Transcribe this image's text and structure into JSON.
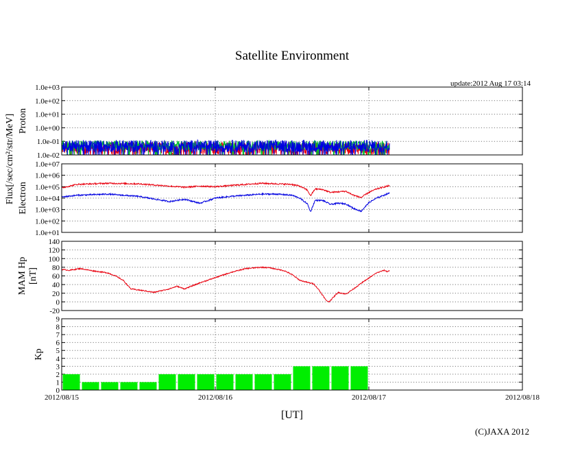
{
  "chart_data": {
    "type": "multi-panel time series",
    "title": "Satellite Environment",
    "update_text": "update:2012 Aug 17 03:14",
    "xlabel": "[UT]",
    "copyright": "(C)JAXA 2012",
    "x_ticks": [
      "2012/08/15",
      "2012/08/16",
      "2012/08/17",
      "2012/08/18"
    ],
    "x_range_days": [
      0,
      3
    ],
    "data_end_day": 2.135,
    "flux_ylabel": "Flux[/sec/cm²/str/MeV]",
    "panels": [
      {
        "name": "Proton",
        "type": "line",
        "ylabel": "Proton",
        "yscale": "log",
        "ylim_exp": [
          -2,
          3
        ],
        "y_ticks": [
          "1.0e-02",
          "1.0e-01",
          "1.0e+00",
          "1.0e+01",
          "1.0e+02",
          "1.0e+03"
        ],
        "series": [
          {
            "name": "proton-red",
            "color": "#e8000e",
            "typical_log": -1.5,
            "noise": 0.45
          },
          {
            "name": "proton-green",
            "color": "#00c030",
            "typical_log": -1.3,
            "noise": 0.35
          },
          {
            "name": "proton-blue",
            "color": "#0000e0",
            "typical_log": -1.35,
            "noise": 0.45
          }
        ]
      },
      {
        "name": "Electron",
        "type": "line",
        "ylabel": "Electron",
        "yscale": "log",
        "ylim_exp": [
          1,
          7
        ],
        "y_ticks": [
          "1.0e+01",
          "1.0e+02",
          "1.0e+03",
          "1.0e+04",
          "1.0e+05",
          "1.0e+06",
          "1.0e+07"
        ],
        "series": [
          {
            "name": "electron-red",
            "color": "#e8000e",
            "points_log": [
              [
                0,
                4.9
              ],
              [
                0.1,
                5.2
              ],
              [
                0.3,
                5.3
              ],
              [
                0.5,
                5.25
              ],
              [
                0.7,
                5.05
              ],
              [
                0.8,
                4.95
              ],
              [
                0.9,
                5.05
              ],
              [
                1.0,
                5.0
              ],
              [
                1.1,
                5.1
              ],
              [
                1.3,
                5.3
              ],
              [
                1.4,
                5.25
              ],
              [
                1.5,
                5.2
              ],
              [
                1.55,
                5.05
              ],
              [
                1.6,
                4.7
              ],
              [
                1.62,
                4.2
              ],
              [
                1.65,
                4.8
              ],
              [
                1.7,
                4.75
              ],
              [
                1.75,
                4.5
              ],
              [
                1.8,
                4.55
              ],
              [
                1.85,
                4.6
              ],
              [
                1.9,
                4.25
              ],
              [
                1.95,
                4.05
              ],
              [
                2.0,
                4.5
              ],
              [
                2.05,
                4.8
              ],
              [
                2.135,
                5.1
              ]
            ]
          },
          {
            "name": "electron-blue",
            "color": "#0000e0",
            "points_log": [
              [
                0,
                4.1
              ],
              [
                0.1,
                4.25
              ],
              [
                0.3,
                4.35
              ],
              [
                0.5,
                4.15
              ],
              [
                0.7,
                3.7
              ],
              [
                0.8,
                3.9
              ],
              [
                0.9,
                3.55
              ],
              [
                1.0,
                4.0
              ],
              [
                1.1,
                4.15
              ],
              [
                1.3,
                4.35
              ],
              [
                1.4,
                4.35
              ],
              [
                1.5,
                4.25
              ],
              [
                1.55,
                4.0
              ],
              [
                1.6,
                3.5
              ],
              [
                1.62,
                2.8
              ],
              [
                1.65,
                3.8
              ],
              [
                1.7,
                3.8
              ],
              [
                1.75,
                3.45
              ],
              [
                1.8,
                3.55
              ],
              [
                1.85,
                3.5
              ],
              [
                1.9,
                3.1
              ],
              [
                1.95,
                2.85
              ],
              [
                2.0,
                3.6
              ],
              [
                2.05,
                4.0
              ],
              [
                2.135,
                4.45
              ]
            ]
          }
        ]
      },
      {
        "name": "MAM Hp",
        "type": "line",
        "ylabel": "MAM Hp",
        "ylabel_units": "[nT]",
        "yscale": "linear",
        "ylim": [
          -20,
          140
        ],
        "y_ticks": [
          "-20",
          "0",
          "20",
          "40",
          "60",
          "80",
          "100",
          "120",
          "140"
        ],
        "series": [
          {
            "name": "mam-hp",
            "color": "#e8000e",
            "points": [
              [
                0,
                75
              ],
              [
                0.05,
                73
              ],
              [
                0.12,
                77
              ],
              [
                0.2,
                72
              ],
              [
                0.3,
                67
              ],
              [
                0.35,
                60
              ],
              [
                0.4,
                50
              ],
              [
                0.45,
                30
              ],
              [
                0.55,
                25
              ],
              [
                0.6,
                22
              ],
              [
                0.7,
                30
              ],
              [
                0.75,
                36
              ],
              [
                0.8,
                30
              ],
              [
                0.9,
                44
              ],
              [
                1.0,
                56
              ],
              [
                1.1,
                68
              ],
              [
                1.2,
                77
              ],
              [
                1.3,
                80
              ],
              [
                1.35,
                79
              ],
              [
                1.45,
                72
              ],
              [
                1.5,
                63
              ],
              [
                1.55,
                50
              ],
              [
                1.6,
                45
              ],
              [
                1.64,
                42
              ],
              [
                1.67,
                30
              ],
              [
                1.7,
                15
              ],
              [
                1.72,
                4
              ],
              [
                1.74,
                0
              ],
              [
                1.8,
                22
              ],
              [
                1.85,
                18
              ],
              [
                1.9,
                30
              ],
              [
                1.95,
                43
              ],
              [
                2.0,
                55
              ],
              [
                2.05,
                67
              ],
              [
                2.1,
                73
              ],
              [
                2.12,
                70
              ],
              [
                2.135,
                72
              ]
            ]
          }
        ]
      },
      {
        "name": "Kp",
        "type": "bar",
        "ylabel": "Kp",
        "yscale": "linear",
        "ylim": [
          0,
          9
        ],
        "y_ticks": [
          "0",
          "1",
          "2",
          "3",
          "4",
          "5",
          "6",
          "7",
          "8",
          "9"
        ],
        "bar_width_hours": 3,
        "values": [
          2,
          1,
          1,
          1,
          1,
          2,
          2,
          2,
          2,
          2,
          2,
          2,
          3,
          3,
          3,
          3
        ],
        "bar_color": "#00ee00"
      }
    ]
  }
}
